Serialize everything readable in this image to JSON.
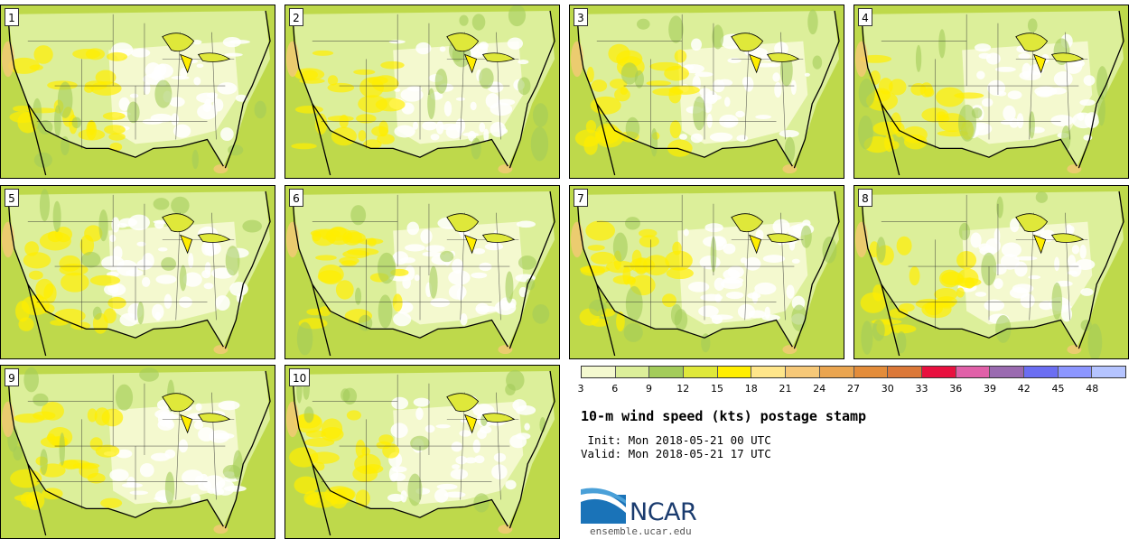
{
  "panels": [
    {
      "label": "1"
    },
    {
      "label": "2"
    },
    {
      "label": "3"
    },
    {
      "label": "4"
    },
    {
      "label": "5"
    },
    {
      "label": "6"
    },
    {
      "label": "7"
    },
    {
      "label": "8"
    },
    {
      "label": "9"
    },
    {
      "label": "10"
    }
  ],
  "colorbar": {
    "colors": [
      "#f4f9cf",
      "#dcef9a",
      "#a3cc5a",
      "#dfe83a",
      "#ffee00",
      "#ffe68a",
      "#f6c878",
      "#eaa550",
      "#e38c3a",
      "#db7838",
      "#e8103f",
      "#e060a8",
      "#9a6ab0",
      "#6b6ef2",
      "#8c96ff",
      "#b5c4ff"
    ],
    "tick_labels": [
      "3",
      "6",
      "9",
      "12",
      "15",
      "18",
      "21",
      "24",
      "27",
      "30",
      "33",
      "36",
      "39",
      "42",
      "45",
      "48"
    ]
  },
  "title": "10-m wind speed (kts) postage stamp",
  "init_line": " Init: Mon 2018-05-21 00 UTC",
  "valid_line": "Valid: Mon 2018-05-21 17 UTC",
  "logo": {
    "name": "NCAR",
    "url": "ensemble.ucar.edu"
  }
}
